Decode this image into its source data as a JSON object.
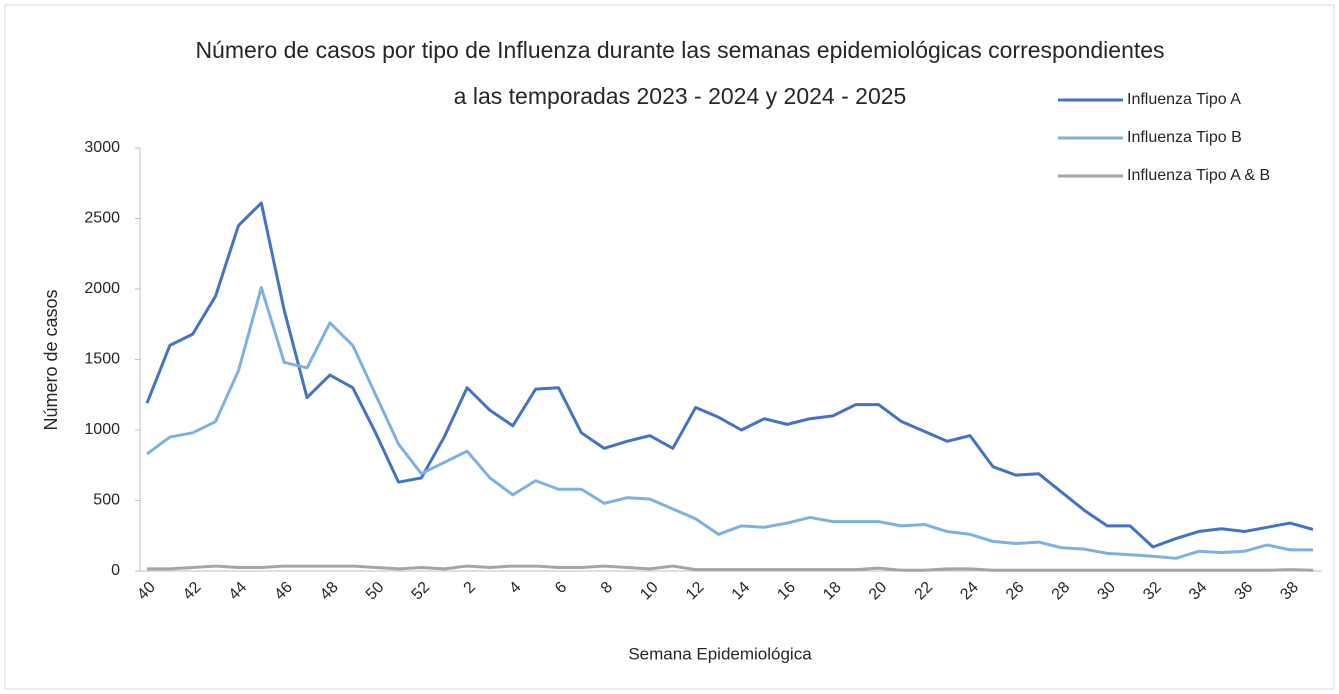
{
  "chart_data": {
    "type": "line",
    "title": [
      "Número de casos por tipo de Influenza durante las semanas epidemiológicas correspondientes",
      "a las temporadas 2023 - 2024 y 2024 - 2025"
    ],
    "x_label": "Semana Epidemiológica",
    "y_label": "Número de casos",
    "categories": [
      "40",
      null,
      "42",
      null,
      "44",
      null,
      "46",
      null,
      "48",
      null,
      "50",
      null,
      "52",
      null,
      "2",
      null,
      "4",
      null,
      "6",
      null,
      "8",
      null,
      "10",
      null,
      "12",
      null,
      "14",
      null,
      "16",
      null,
      "18",
      null,
      "20",
      null,
      "22",
      null,
      "24",
      null,
      "26",
      null,
      "28",
      null,
      "30",
      null,
      "32",
      null,
      "34",
      null,
      "36",
      null,
      "38",
      null
    ],
    "series": [
      {
        "name": "Influenza Tipo A",
        "color": "#4472c4",
        "values": [
          1190,
          1600,
          1680,
          1950,
          2450,
          2610,
          1850,
          1230,
          1390,
          1300,
          980,
          630,
          660,
          950,
          1300,
          1140,
          1030,
          1290,
          1300,
          980,
          870,
          920,
          960,
          870,
          1160,
          1090,
          1000,
          1080,
          1040,
          1080,
          1100,
          1180,
          1180,
          1060,
          990,
          920,
          960,
          740,
          680,
          690,
          560,
          430,
          320,
          320,
          170,
          230,
          280,
          300,
          280,
          310,
          340,
          295
        ]
      },
      {
        "name": "Influenza Tipo B",
        "color": "#7eb1e2",
        "values": [
          830,
          950,
          980,
          1060,
          1420,
          2010,
          1480,
          1440,
          1760,
          1600,
          1250,
          900,
          690,
          770,
          850,
          660,
          540,
          640,
          580,
          580,
          480,
          520,
          510,
          440,
          370,
          260,
          320,
          310,
          340,
          380,
          350,
          350,
          350,
          320,
          330,
          280,
          260,
          210,
          195,
          205,
          165,
          155,
          125,
          115,
          105,
          90,
          140,
          130,
          140,
          185,
          150,
          150
        ]
      },
      {
        "name": "Influenza Tipo A & B",
        "color": "#a5a5a5",
        "values": [
          15,
          15,
          25,
          35,
          25,
          25,
          35,
          35,
          35,
          35,
          25,
          15,
          25,
          15,
          35,
          25,
          35,
          35,
          25,
          25,
          35,
          25,
          15,
          35,
          10,
          10,
          10,
          10,
          10,
          10,
          10,
          10,
          20,
          5,
          5,
          15,
          15,
          5,
          5,
          5,
          5,
          5,
          5,
          5,
          5,
          5,
          5,
          5,
          5,
          5,
          10,
          5
        ]
      }
    ],
    "ylim": [
      0,
      3000
    ],
    "yticks": [
      0,
      500,
      1000,
      1500,
      2000,
      2500,
      3000
    ],
    "grid": false,
    "legend": "top-right"
  }
}
